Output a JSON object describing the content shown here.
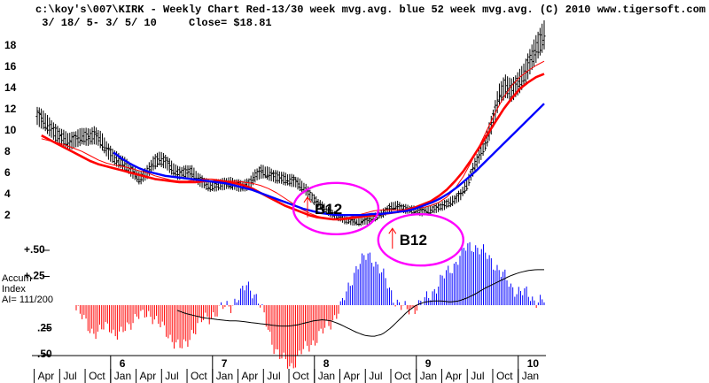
{
  "chart_data": {
    "type": "line",
    "title_line1": "c:\\koy's\\007\\KIRK  - Weekly Chart  Red-13/30 week mvg.avg.  blue 52 week mvg.avg.  (C) 2010 www.tigersoft.com",
    "title_line2": " 3/ 18/ 5- 3/ 5/ 10",
    "close_label": "Close= $18.81",
    "ylim": [
      0,
      19
    ],
    "yticks": [
      "18",
      "16",
      "14",
      "12",
      "10",
      "8",
      "6",
      "4",
      "2"
    ],
    "indicator_ylim": [
      -0.6,
      0.6
    ],
    "indicator_ticks": [
      "+.50",
      "+.25",
      ".25",
      ".50"
    ],
    "indicator_tick_signs": [
      "+",
      "+",
      "-",
      "-"
    ],
    "indicator_label": [
      "Accum",
      "Index",
      "AI= 111/200"
    ],
    "x_month_labels": [
      "Apr",
      "Jul",
      "Oct",
      "Jan",
      "Apr",
      "Jul",
      "Oct",
      "Jan",
      "Apr",
      "Jul",
      "Oct",
      "Jan",
      "Apr",
      "Jul",
      "Oct",
      "Jan",
      "Apr",
      "Jul",
      "Oct",
      "Jan"
    ],
    "x_month_index": [
      1,
      4,
      7,
      10,
      13,
      16,
      19,
      22,
      25,
      28,
      31,
      34,
      37,
      40,
      43,
      46,
      49,
      52,
      55,
      58
    ],
    "x_year_labels": [
      {
        "label": "6",
        "index": 10
      },
      {
        "label": "7",
        "index": 22
      },
      {
        "label": "8",
        "index": 34
      },
      {
        "label": "9",
        "index": 46
      },
      {
        "label": "10",
        "index": 58
      }
    ],
    "x_month_range": [
      0,
      59.7
    ],
    "price": [
      11.2,
      10.8,
      10.1,
      9.5,
      9.1,
      8.8,
      9.0,
      9.3,
      9.2,
      9.4,
      8.9,
      7.9,
      7.3,
      6.9,
      6.5,
      5.9,
      5.3,
      5.8,
      6.7,
      7.2,
      6.9,
      6.3,
      5.8,
      5.9,
      6.0,
      5.3,
      4.9,
      4.6,
      4.7,
      4.8,
      4.9,
      4.7,
      4.6,
      4.8,
      5.6,
      6.0,
      5.8,
      5.5,
      5.4,
      5.2,
      5.1,
      4.7,
      4.2,
      3.4,
      2.9,
      2.4,
      2.0,
      1.7,
      1.4,
      1.3,
      1.2,
      1.3,
      1.5,
      1.8,
      2.1,
      2.6,
      2.8,
      2.5,
      2.4,
      2.3,
      2.2,
      2.3,
      2.5,
      2.7,
      3.0,
      3.3,
      3.8,
      4.8,
      6.3,
      7.6,
      8.9,
      10.8,
      13.2,
      14.0,
      13.6,
      14.3,
      15.2,
      16.6,
      17.8,
      18.81
    ],
    "series": [
      {
        "name": "13 week mvg.avg.",
        "color": "#ff0000",
        "width": 1,
        "start": 0.5,
        "values": [
          9.1,
          8.9,
          8.7,
          8.5,
          8.2,
          7.9,
          7.5,
          7.1,
          6.8,
          6.6,
          6.5,
          6.3,
          6.1,
          5.9,
          5.6,
          5.4,
          5.2,
          5.1,
          5.1,
          5.2,
          5.3,
          5.3,
          5.2,
          5.1,
          5.1,
          5.0,
          4.9,
          4.7,
          4.4,
          4.0,
          3.5,
          3.0,
          2.5,
          2.1,
          1.8,
          1.6,
          1.5,
          1.6,
          1.7,
          1.9,
          2.1,
          2.3,
          2.4,
          2.4,
          2.4,
          2.4,
          2.5,
          2.6,
          2.8,
          3.1,
          3.6,
          4.4,
          5.5,
          6.9,
          8.4,
          10.0,
          11.6,
          13.0,
          14.1,
          14.9,
          15.5,
          16.0,
          16.4
        ]
      },
      {
        "name": "30 week mvg.avg.",
        "color": "#ff0000",
        "width": 2.6,
        "start": 0.5,
        "values": [
          9.4,
          9.0,
          8.6,
          8.2,
          7.8,
          7.4,
          7.0,
          6.7,
          6.5,
          6.3,
          6.1,
          5.9,
          5.7,
          5.5,
          5.3,
          5.2,
          5.1,
          5.0,
          5.0,
          5.0,
          5.1,
          5.1,
          5.1,
          5.0,
          4.9,
          4.7,
          4.4,
          4.0,
          3.6,
          3.2,
          2.8,
          2.5,
          2.2,
          1.9,
          1.7,
          1.6,
          1.5,
          1.5,
          1.6,
          1.7,
          1.8,
          1.9,
          2.0,
          2.1,
          2.2,
          2.4,
          2.6,
          2.9,
          3.2,
          3.7,
          4.3,
          5.1,
          6.0,
          7.1,
          8.3,
          9.5,
          10.7,
          11.9,
          12.9,
          13.8,
          14.4,
          14.9,
          15.2
        ]
      },
      {
        "name": "52 week mvg.avg.",
        "color": "#0000ff",
        "width": 2.4,
        "start": 9.0,
        "values": [
          7.8,
          7.2,
          6.7,
          6.3,
          6.0,
          5.8,
          5.6,
          5.5,
          5.4,
          5.3,
          5.2,
          5.1,
          5.0,
          4.9,
          4.7,
          4.5,
          4.3,
          4.0,
          3.7,
          3.4,
          3.1,
          2.8,
          2.5,
          2.3,
          2.1,
          2.0,
          1.9,
          1.9,
          1.9,
          1.9,
          2.0,
          2.0,
          2.1,
          2.2,
          2.3,
          2.5,
          2.8,
          3.1,
          3.5,
          4.0,
          4.6,
          5.3,
          6.0,
          6.8,
          7.6,
          8.4,
          9.2,
          10.0,
          10.8,
          11.6,
          12.4
        ]
      }
    ],
    "indicator_series": {
      "name": "Accum Index",
      "values": [
        -0.05,
        -0.12,
        -0.18,
        -0.25,
        -0.28,
        -0.22,
        -0.18,
        -0.28,
        -0.3,
        -0.22,
        -0.15,
        -0.1,
        -0.12,
        -0.08,
        -0.1,
        -0.18,
        -0.25,
        -0.3,
        -0.35,
        -0.42,
        -0.38,
        -0.25,
        -0.2,
        -0.15,
        -0.12,
        -0.08,
        -0.05,
        -0.02,
        0.0,
        0.05,
        0.1,
        0.2,
        0.15,
        0.05,
        -0.1,
        -0.25,
        -0.4,
        -0.5,
        -0.55,
        -0.58,
        -0.52,
        -0.45,
        -0.4,
        -0.35,
        -0.3,
        -0.25,
        -0.18,
        -0.1,
        -0.03,
        0.1,
        0.25,
        0.38,
        0.42,
        0.48,
        0.45,
        0.35,
        0.25,
        0.15,
        0.05,
        -0.02,
        -0.05,
        -0.03,
        0.0,
        0.02,
        0.08,
        0.15,
        0.22,
        0.28,
        0.35,
        0.42,
        0.5,
        0.55,
        0.58,
        0.55,
        0.5,
        0.45,
        0.4,
        0.32,
        0.25,
        0.18,
        0.15,
        0.12,
        0.1,
        0.06,
        0.05,
        0.04
      ]
    },
    "indicator_ma": {
      "name": "Accum Index moving average",
      "values": [
        -0.05,
        -0.08,
        -0.1,
        -0.12,
        -0.13,
        -0.14,
        -0.15,
        -0.15,
        -0.16,
        -0.17,
        -0.18,
        -0.19,
        -0.2,
        -0.2,
        -0.19,
        -0.17,
        -0.15,
        -0.14,
        -0.15,
        -0.18,
        -0.22,
        -0.26,
        -0.29,
        -0.3,
        -0.28,
        -0.22,
        -0.14,
        -0.06,
        0.0,
        0.03,
        0.04,
        0.04,
        0.03,
        0.04,
        0.07,
        0.11,
        0.16,
        0.2,
        0.24,
        0.28,
        0.31,
        0.33,
        0.34,
        0.34
      ]
    },
    "annotations": [
      {
        "label": "B12",
        "arrow": "up",
        "index": 33.5,
        "value": 0.4
      },
      {
        "label": "B12",
        "arrow": "up",
        "index": 43.5,
        "value": 0.1
      }
    ]
  },
  "colors": {
    "red": "#ff0000",
    "blue": "#0000ff",
    "magenta": "#ff00ff",
    "price_bar": "#000000"
  }
}
